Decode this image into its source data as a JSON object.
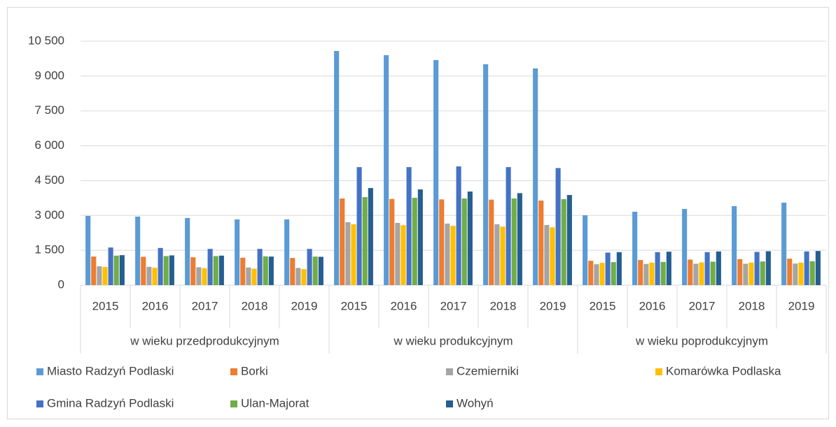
{
  "chart_data": {
    "type": "bar",
    "categories": [
      "2015",
      "2016",
      "2017",
      "2018",
      "2019",
      "2015",
      "2016",
      "2017",
      "2018",
      "2019",
      "2015",
      "2016",
      "2017",
      "2018",
      "2019"
    ],
    "groups": [
      "w wieku przedprodukcyjnym",
      "w wieku produkcyjnym",
      "w wieku poprodukcyjnym"
    ],
    "series": [
      {
        "name": "Miasto Radzyń Podlaski",
        "color": "#5b9bd5",
        "values": [
          2980,
          2950,
          2890,
          2830,
          2830,
          10080,
          9900,
          9690,
          9510,
          9330,
          3010,
          3160,
          3280,
          3400,
          3550
        ]
      },
      {
        "name": "Borki",
        "color": "#ed7d31",
        "values": [
          1230,
          1220,
          1200,
          1180,
          1170,
          3730,
          3710,
          3690,
          3680,
          3640,
          1050,
          1080,
          1100,
          1120,
          1140
        ]
      },
      {
        "name": "Czemierniki",
        "color": "#a5a5a5",
        "values": [
          810,
          790,
          770,
          760,
          740,
          2710,
          2680,
          2650,
          2620,
          2590,
          900,
          910,
          920,
          920,
          930
        ]
      },
      {
        "name": "Komarówka Podlaska",
        "color": "#ffc000",
        "values": [
          780,
          750,
          730,
          710,
          690,
          2620,
          2580,
          2550,
          2520,
          2490,
          960,
          970,
          980,
          970,
          970
        ]
      },
      {
        "name": "Gmina Radzyń Podlaski",
        "color": "#4472c4",
        "values": [
          1620,
          1600,
          1560,
          1560,
          1560,
          5080,
          5080,
          5110,
          5080,
          5040,
          1400,
          1420,
          1420,
          1430,
          1450
        ]
      },
      {
        "name": "Ulan-Majorat",
        "color": "#70ad47",
        "values": [
          1270,
          1250,
          1250,
          1240,
          1230,
          3790,
          3760,
          3730,
          3730,
          3700,
          990,
          1000,
          1010,
          1020,
          1030
        ]
      },
      {
        "name": "Wohyń",
        "color": "#255e91",
        "values": [
          1290,
          1280,
          1270,
          1230,
          1220,
          4180,
          4120,
          4030,
          3960,
          3880,
          1420,
          1440,
          1450,
          1460,
          1470
        ]
      }
    ],
    "ylim": [
      0,
      10500
    ],
    "yticks": [
      0,
      {
        "value": 1500,
        "label": "1 500"
      },
      {
        "value": 3000,
        "label": "3 000"
      },
      {
        "value": 4500,
        "label": "4 500"
      },
      {
        "value": 6000,
        "label": "6 000"
      },
      {
        "value": 7500,
        "label": "7 500"
      },
      {
        "value": 9000,
        "label": "9 000"
      },
      {
        "value": 10500,
        "label": "10 500"
      }
    ],
    "grid": true,
    "legend": "bottom"
  }
}
